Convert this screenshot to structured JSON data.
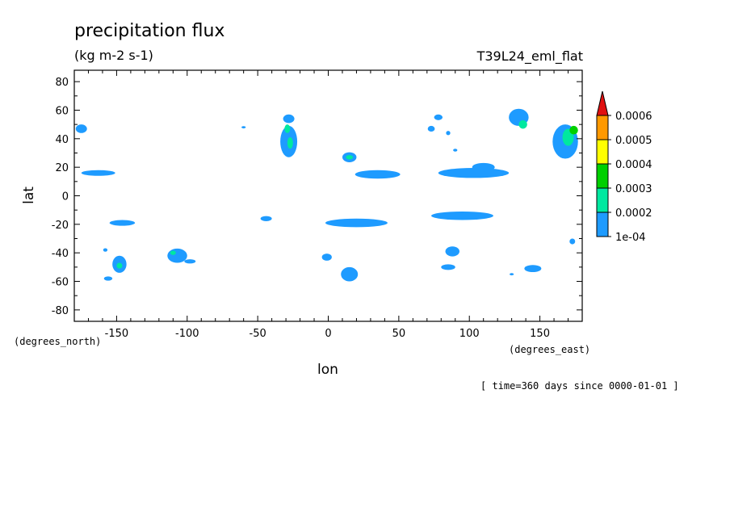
{
  "chart_data": {
    "type": "heatmap",
    "title": "precipitation flux",
    "units": "(kg m-2 s-1)",
    "dataset": "T39L24_eml_flat",
    "xlabel": "lon",
    "ylabel": "lat",
    "x_units": "(degrees_east)",
    "y_units": "(degrees_north)",
    "time_note": "[ time=360 days since 0000-01-01 ]",
    "xlim": [
      -180,
      180
    ],
    "ylim": [
      -88,
      88
    ],
    "x_ticks": [
      -150,
      -100,
      -50,
      0,
      50,
      100,
      150
    ],
    "y_ticks": [
      -80,
      -60,
      -40,
      -20,
      0,
      20,
      40,
      60,
      80
    ],
    "grid": false,
    "legend_position": "right",
    "levels": [
      {
        "label": "1e-04",
        "value": 0.0001,
        "color": "#1e9bff"
      },
      {
        "label": "0.0002",
        "value": 0.0002,
        "color": "#00e8a0"
      },
      {
        "label": "0.0003",
        "value": 0.0003,
        "color": "#00d000"
      },
      {
        "label": "0.0004",
        "value": 0.0004,
        "color": "#ffff00"
      },
      {
        "label": "0.0005",
        "value": 0.0005,
        "color": "#ff9900"
      },
      {
        "label": "0.0006",
        "value": 0.0006,
        "color": "#e01010"
      }
    ],
    "regions": [
      {
        "lon": -175,
        "lat": 47,
        "rx": 4,
        "ry": 3,
        "level": 0
      },
      {
        "lon": -163,
        "lat": 16,
        "rx": 12,
        "ry": 2,
        "level": 0
      },
      {
        "lon": -146,
        "lat": -19,
        "rx": 9,
        "ry": 2,
        "level": 0
      },
      {
        "lon": -148,
        "lat": -48,
        "rx": 5,
        "ry": 6,
        "level": 0
      },
      {
        "lon": -148,
        "lat": -49,
        "rx": 2,
        "ry": 2,
        "level": 1
      },
      {
        "lon": -156,
        "lat": -58,
        "rx": 3,
        "ry": 1.5,
        "level": 0
      },
      {
        "lon": -158,
        "lat": -38,
        "rx": 1.5,
        "ry": 1.2,
        "level": 0
      },
      {
        "lon": -107,
        "lat": -42,
        "rx": 7,
        "ry": 5,
        "level": 0
      },
      {
        "lon": -110,
        "lat": -40,
        "rx": 2,
        "ry": 1.5,
        "level": 1
      },
      {
        "lon": -98,
        "lat": -46,
        "rx": 4,
        "ry": 1.5,
        "level": 0
      },
      {
        "lon": -60,
        "lat": 48,
        "rx": 1.5,
        "ry": 0.8,
        "level": 0
      },
      {
        "lon": -44,
        "lat": -16,
        "rx": 4,
        "ry": 1.8,
        "level": 0
      },
      {
        "lon": -28,
        "lat": 54,
        "rx": 4,
        "ry": 3,
        "level": 0
      },
      {
        "lon": -28,
        "lat": 38,
        "rx": 6,
        "ry": 11,
        "level": 0
      },
      {
        "lon": -27,
        "lat": 37,
        "rx": 2,
        "ry": 4,
        "level": 1
      },
      {
        "lon": -29,
        "lat": 47,
        "rx": 2,
        "ry": 3,
        "level": 1
      },
      {
        "lon": -1,
        "lat": -43,
        "rx": 3.5,
        "ry": 2.5,
        "level": 0
      },
      {
        "lon": 15,
        "lat": -55,
        "rx": 6,
        "ry": 5,
        "level": 0
      },
      {
        "lon": 15,
        "lat": 27,
        "rx": 5,
        "ry": 3.5,
        "level": 0
      },
      {
        "lon": 15,
        "lat": 27,
        "rx": 2.5,
        "ry": 1.5,
        "level": 1
      },
      {
        "lon": 20,
        "lat": -19,
        "rx": 22,
        "ry": 3,
        "level": 0
      },
      {
        "lon": 35,
        "lat": 15,
        "rx": 16,
        "ry": 3,
        "level": 0
      },
      {
        "lon": 78,
        "lat": 55,
        "rx": 3,
        "ry": 2,
        "level": 0
      },
      {
        "lon": 73,
        "lat": 47,
        "rx": 2.5,
        "ry": 2,
        "level": 0
      },
      {
        "lon": 85,
        "lat": 44,
        "rx": 1.5,
        "ry": 1.5,
        "level": 0
      },
      {
        "lon": 90,
        "lat": 32,
        "rx": 1.5,
        "ry": 1,
        "level": 0
      },
      {
        "lon": 103,
        "lat": 16,
        "rx": 25,
        "ry": 3.5,
        "level": 0
      },
      {
        "lon": 110,
        "lat": 20,
        "rx": 8,
        "ry": 3,
        "level": 0
      },
      {
        "lon": 95,
        "lat": -14,
        "rx": 22,
        "ry": 3,
        "level": 0
      },
      {
        "lon": 88,
        "lat": -39,
        "rx": 5,
        "ry": 3.5,
        "level": 0
      },
      {
        "lon": 85,
        "lat": -50,
        "rx": 5,
        "ry": 2,
        "level": 0
      },
      {
        "lon": 135,
        "lat": 55,
        "rx": 7,
        "ry": 6,
        "level": 0
      },
      {
        "lon": 138,
        "lat": 50,
        "rx": 3,
        "ry": 3,
        "level": 1
      },
      {
        "lon": 145,
        "lat": -51,
        "rx": 6,
        "ry": 2.5,
        "level": 0
      },
      {
        "lon": 130,
        "lat": -55,
        "rx": 1.5,
        "ry": 0.8,
        "level": 0
      },
      {
        "lon": 168,
        "lat": 38,
        "rx": 9,
        "ry": 12,
        "level": 0
      },
      {
        "lon": 170,
        "lat": 41,
        "rx": 4,
        "ry": 6,
        "level": 1
      },
      {
        "lon": 174,
        "lat": 46,
        "rx": 3,
        "ry": 3,
        "level": 2
      },
      {
        "lon": 173,
        "lat": -32,
        "rx": 2,
        "ry": 2,
        "level": 0
      }
    ]
  }
}
